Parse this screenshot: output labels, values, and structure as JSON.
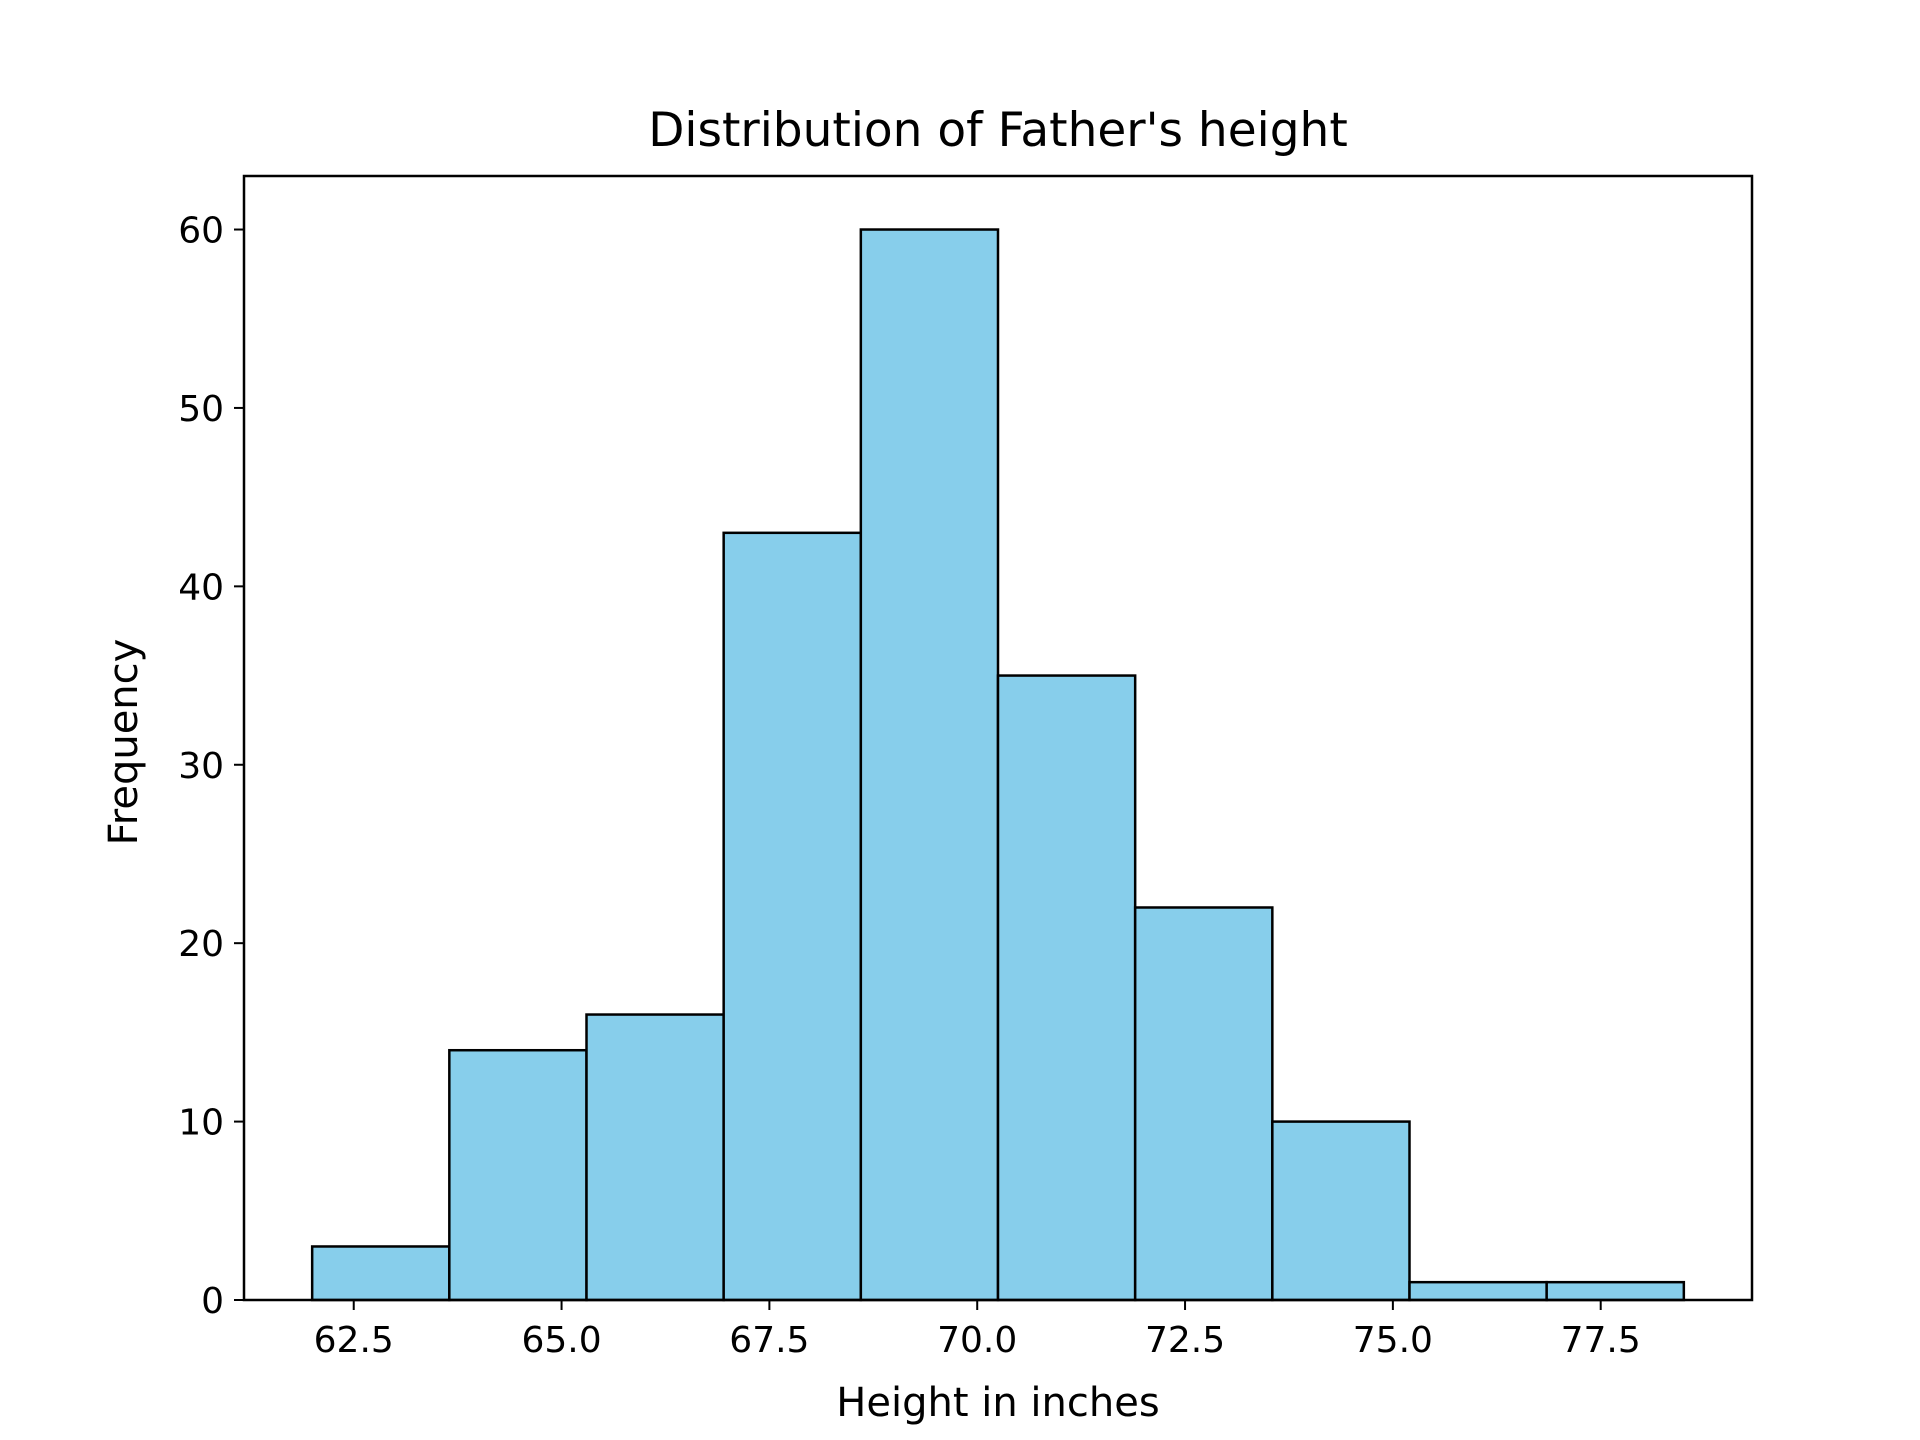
{
  "chart_data": {
    "type": "bar",
    "title": "Distribution of Father's height",
    "xlabel": "Height in inches",
    "ylabel": "Frequency",
    "x_ticks": [
      62.5,
      65.0,
      67.5,
      70.0,
      72.5,
      75.0,
      77.5
    ],
    "x_tick_labels": [
      "62.5",
      "65.0",
      "67.5",
      "70.0",
      "72.5",
      "75.0",
      "77.5"
    ],
    "y_ticks": [
      0,
      10,
      20,
      30,
      40,
      50,
      60
    ],
    "y_tick_labels": [
      "0",
      "10",
      "20",
      "30",
      "40",
      "50",
      "60"
    ],
    "xlim": [
      61.18,
      79.32
    ],
    "ylim": [
      0,
      63
    ],
    "grid": false,
    "bins": [
      {
        "x_start": 62.0,
        "x_end": 63.65,
        "count": 3
      },
      {
        "x_start": 63.65,
        "x_end": 65.3,
        "count": 14
      },
      {
        "x_start": 65.3,
        "x_end": 66.95,
        "count": 16
      },
      {
        "x_start": 66.95,
        "x_end": 68.6,
        "count": 43
      },
      {
        "x_start": 68.6,
        "x_end": 70.25,
        "count": 60
      },
      {
        "x_start": 70.25,
        "x_end": 71.9,
        "count": 35
      },
      {
        "x_start": 71.9,
        "x_end": 73.55,
        "count": 22
      },
      {
        "x_start": 73.55,
        "x_end": 75.2,
        "count": 10
      },
      {
        "x_start": 75.2,
        "x_end": 76.85,
        "count": 1
      },
      {
        "x_start": 76.85,
        "x_end": 78.5,
        "count": 1
      }
    ],
    "colors": {
      "bar_fill": "#87CEEB",
      "bar_edge": "#000000",
      "axes": "#000000"
    }
  }
}
